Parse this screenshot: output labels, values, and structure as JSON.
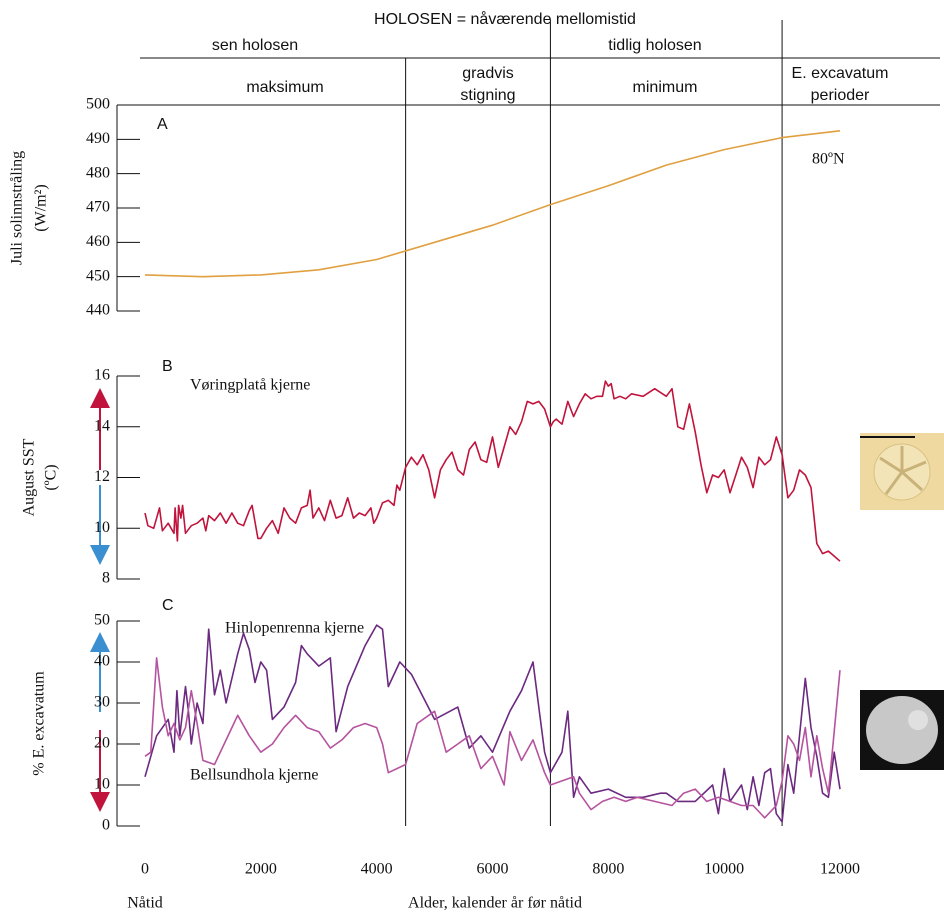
{
  "header": {
    "title": "HOLOSEN = nåværende mellomistid",
    "row1": [
      "sen holosen",
      "tidlig holosen"
    ],
    "row2": [
      "maksimum",
      "gradvis",
      "stigning",
      "minimum",
      "E. excavatum",
      "perioder"
    ],
    "dividers": [
      4500,
      7000,
      11000
    ]
  },
  "chart_data": [
    {
      "type": "line",
      "panel_label": "A",
      "ylabel": [
        "Juli solinnstråling",
        "(W/m²)"
      ],
      "annotation": "80ºN",
      "xlim": [
        0,
        12000
      ],
      "ylim": [
        440,
        500
      ],
      "yticks": [
        440,
        450,
        460,
        470,
        480,
        490,
        500
      ],
      "series": [
        {
          "color": "#e0a040",
          "x": [
            0,
            1000,
            2000,
            3000,
            4000,
            5000,
            6000,
            7000,
            8000,
            9000,
            10000,
            11000,
            12000
          ],
          "values": [
            450.5,
            450,
            450.5,
            452,
            455,
            460,
            465,
            471,
            476.5,
            482.5,
            487,
            490.5,
            492.5
          ]
        }
      ]
    },
    {
      "type": "line",
      "panel_label": "B",
      "ylabel": [
        "August SST",
        "(ºC)"
      ],
      "xlim": [
        0,
        12000
      ],
      "ylim": [
        8,
        16
      ],
      "yticks": [
        8,
        10,
        12,
        14,
        16
      ],
      "series": [
        {
          "name": "Vøringplatå kjerne",
          "color": "#c0143c",
          "x": [
            0,
            50,
            150,
            250,
            300,
            400,
            500,
            520,
            560,
            580,
            620,
            650,
            700,
            800,
            900,
            1000,
            1050,
            1100,
            1200,
            1300,
            1400,
            1500,
            1600,
            1700,
            1800,
            1850,
            1950,
            2000,
            2100,
            2200,
            2300,
            2400,
            2500,
            2600,
            2700,
            2800,
            2850,
            2900,
            3000,
            3100,
            3200,
            3300,
            3400,
            3500,
            3600,
            3700,
            3800,
            3900,
            3950,
            4000,
            4100,
            4200,
            4300,
            4350,
            4400,
            4500,
            4600,
            4700,
            4800,
            4900,
            5000,
            5100,
            5200,
            5300,
            5400,
            5500,
            5600,
            5700,
            5800,
            5900,
            6000,
            6100,
            6200,
            6300,
            6400,
            6500,
            6600,
            6700,
            6800,
            6900,
            7000,
            7050,
            7100,
            7200,
            7300,
            7400,
            7500,
            7600,
            7700,
            7800,
            7900,
            7950,
            8000,
            8050,
            8100,
            8200,
            8300,
            8400,
            8600,
            8800,
            9000,
            9100,
            9200,
            9300,
            9400,
            9500,
            9600,
            9700,
            9800,
            9900,
            10000,
            10100,
            10200,
            10300,
            10400,
            10500,
            10600,
            10700,
            10800,
            10900,
            11000,
            11100,
            11200,
            11300,
            11400,
            11500,
            11600,
            11700,
            11800,
            12000
          ],
          "values": [
            10.6,
            10.1,
            10.0,
            10.8,
            9.9,
            10.2,
            9.8,
            10.8,
            9.5,
            10.9,
            10.4,
            10.9,
            9.8,
            10.1,
            10.2,
            10.4,
            9.9,
            10.5,
            10.3,
            10.6,
            10.2,
            10.6,
            10.2,
            10.1,
            10.7,
            10.9,
            9.6,
            9.6,
            10.0,
            10.3,
            9.8,
            10.8,
            10.4,
            10.2,
            10.8,
            10.9,
            11.5,
            10.4,
            10.8,
            10.3,
            11.1,
            10.4,
            10.5,
            11.2,
            10.4,
            10.6,
            10.5,
            10.8,
            10.2,
            10.4,
            11.0,
            11.1,
            10.9,
            11.7,
            11.5,
            12.4,
            12.8,
            12.5,
            12.9,
            12.3,
            11.2,
            12.3,
            12.7,
            13.0,
            12.3,
            12.1,
            13.1,
            13.4,
            12.7,
            12.6,
            13.6,
            12.4,
            13.2,
            14.0,
            13.7,
            14.2,
            15.0,
            14.9,
            15.0,
            14.7,
            14.0,
            14.2,
            14.3,
            14.1,
            15.0,
            14.4,
            14.9,
            15.3,
            15.1,
            15.2,
            15.2,
            15.8,
            15.6,
            15.7,
            15.1,
            15.2,
            15.1,
            15.3,
            15.2,
            15.5,
            15.2,
            15.5,
            14.0,
            13.9,
            14.9,
            13.8,
            12.5,
            11.4,
            12.1,
            12.0,
            12.3,
            11.4,
            12.1,
            12.8,
            12.4,
            11.6,
            12.8,
            12.5,
            12.7,
            13.6,
            12.9,
            11.2,
            11.5,
            12.3,
            12.1,
            11.6,
            9.4,
            9.0,
            9.1,
            8.7
          ]
        }
      ]
    },
    {
      "type": "line",
      "panel_label": "C",
      "ylabel": [
        "% E. excavatum"
      ],
      "xlim": [
        0,
        12000
      ],
      "ylim": [
        0,
        50
      ],
      "yticks": [
        0,
        10,
        20,
        30,
        40,
        50
      ],
      "xticks": [
        0,
        2000,
        4000,
        6000,
        8000,
        10000,
        12000
      ],
      "xlabel": "Alder, kalender år før nåtid",
      "xnote": "Nåtid",
      "series": [
        {
          "name": "Hinlopenrenna kjerne",
          "color": "#6b2a80",
          "x": [
            0,
            200,
            400,
            500,
            550,
            600,
            700,
            750,
            800,
            900,
            1000,
            1100,
            1200,
            1300,
            1400,
            1600,
            1700,
            1800,
            1900,
            2000,
            2100,
            2200,
            2400,
            2600,
            2700,
            2800,
            3000,
            3200,
            3300,
            3500,
            3800,
            4000,
            4100,
            4200,
            4400,
            4600,
            5000,
            5400,
            5600,
            5800,
            6000,
            6300,
            6500,
            6700,
            6900,
            7000,
            7200,
            7300,
            7400,
            7500,
            7700,
            8000,
            8300,
            8600,
            8900,
            9000,
            9200,
            9500,
            9800,
            9900,
            10000,
            10100,
            10300,
            10400,
            10500,
            10600,
            10700,
            10800,
            10900,
            11000,
            11100,
            11200,
            11300,
            11400,
            11500,
            11600,
            11700,
            11800,
            11900,
            12000
          ],
          "values": [
            12,
            22,
            26,
            18,
            33,
            22,
            34,
            28,
            20,
            30,
            25,
            48,
            32,
            38,
            30,
            42,
            47,
            43,
            35,
            40,
            38,
            26,
            29,
            35,
            44,
            42,
            39,
            41,
            23,
            34,
            44,
            49,
            48,
            34,
            40,
            37,
            26,
            29,
            19,
            22,
            18,
            28,
            33,
            40,
            18,
            13,
            18,
            28,
            7,
            12,
            8,
            9,
            7,
            7,
            8,
            8,
            6,
            6,
            10,
            3,
            14,
            6,
            10,
            4,
            12,
            5,
            13,
            14,
            3,
            1,
            15,
            8,
            22,
            36,
            24,
            17,
            8,
            7,
            18,
            9
          ]
        },
        {
          "name": "Bellsundhola kjerne",
          "color": "#b5539f",
          "x": [
            0,
            100,
            200,
            300,
            400,
            500,
            600,
            700,
            800,
            900,
            1000,
            1200,
            1500,
            1600,
            1800,
            2000,
            2200,
            2400,
            2600,
            2800,
            3000,
            3200,
            3400,
            3600,
            3800,
            4000,
            4100,
            4200,
            4500,
            4700,
            5000,
            5200,
            5400,
            5600,
            5800,
            6000,
            6200,
            6300,
            6500,
            6700,
            6900,
            7000,
            7200,
            7400,
            7500,
            7700,
            7900,
            8100,
            8300,
            8500,
            8800,
            9100,
            9300,
            9500,
            9700,
            9900,
            10100,
            10300,
            10500,
            10700,
            10900,
            11000,
            11100,
            11200,
            11300,
            11400,
            11500,
            11600,
            11700,
            11800,
            12000
          ],
          "values": [
            17,
            18,
            41,
            29,
            22,
            25,
            21,
            24,
            33,
            25,
            16,
            15,
            24,
            27,
            22,
            18,
            20,
            24,
            27,
            24,
            23,
            19,
            21,
            24,
            25,
            24,
            20,
            13,
            15,
            25,
            28,
            18,
            20,
            22,
            14,
            17,
            10,
            23,
            16,
            21,
            13,
            10,
            11,
            12,
            8,
            4,
            6,
            7,
            6,
            7,
            6,
            5,
            8,
            9,
            6,
            7,
            6,
            5,
            5,
            2,
            5,
            11,
            22,
            20,
            16,
            24,
            12,
            22,
            14,
            8,
            38
          ]
        }
      ]
    }
  ]
}
